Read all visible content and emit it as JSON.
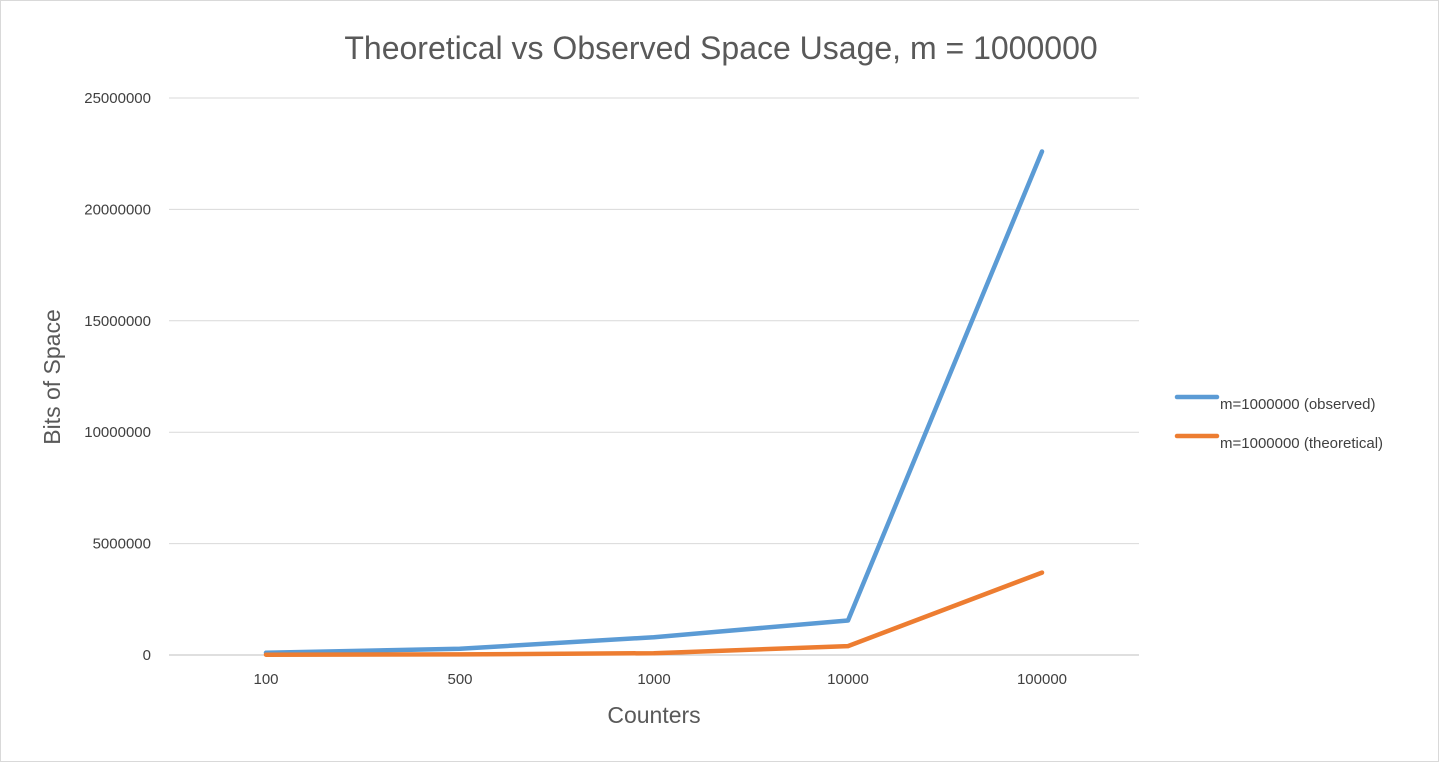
{
  "chart_data": {
    "type": "line",
    "title": "Theoretical vs Observed Space Usage, m = 1000000",
    "xlabel": "Counters",
    "ylabel": "Bits of Space",
    "categories": [
      "100",
      "500",
      "1000",
      "10000",
      "100000"
    ],
    "ylim": [
      0,
      25000000
    ],
    "yticks": [
      "0",
      "5000000",
      "10000000",
      "15000000",
      "20000000",
      "25000000"
    ],
    "grid": true,
    "legend_position": "right",
    "series": [
      {
        "name": "m=1000000 (observed)",
        "color": "#5b9bd5",
        "values": [
          100000,
          280000,
          800000,
          1550000,
          22600000
        ]
      },
      {
        "name": "m=1000000 (theoretical)",
        "color": "#ed7d31",
        "values": [
          15000,
          25000,
          80000,
          400000,
          3700000
        ]
      }
    ]
  }
}
